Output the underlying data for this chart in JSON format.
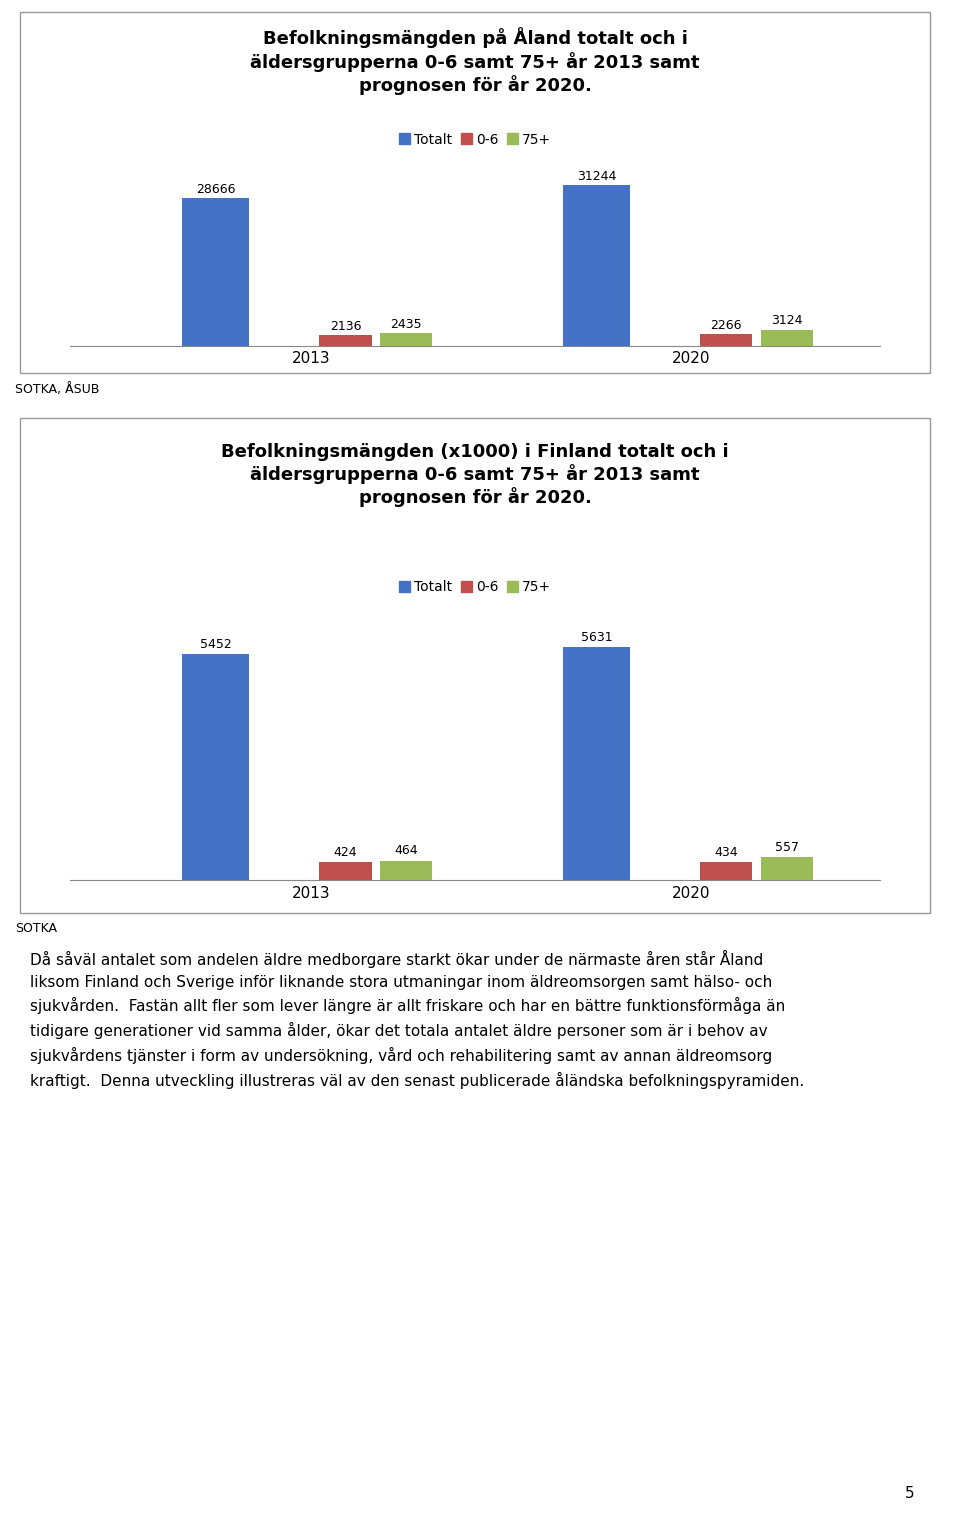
{
  "chart1": {
    "title": "Befolkningsmängden på Åland totalt och i\näldersgrupperna 0-6 samt 75+ år 2013 samt\nprognosen för år 2020.",
    "years": [
      "2013",
      "2020"
    ],
    "totalt": [
      28666,
      31244
    ],
    "age06": [
      2136,
      2266
    ],
    "age75": [
      2435,
      3124
    ],
    "color_totalt": "#4472C4",
    "color_06": "#C0504D",
    "color_75": "#9BBB59",
    "legend_labels": [
      "Totalt",
      "0-6",
      "75+"
    ]
  },
  "chart2": {
    "title": "Befolkningsmängden (x1000) i Finland totalt och i\näldersgrupperna 0-6 samt 75+ år 2013 samt\nprognosen för år 2020.",
    "years": [
      "2013",
      "2020"
    ],
    "totalt": [
      5452,
      5631
    ],
    "age06": [
      424,
      434
    ],
    "age75": [
      464,
      557
    ],
    "color_totalt": "#4472C4",
    "color_06": "#C0504D",
    "color_75": "#9BBB59",
    "legend_labels": [
      "Totalt",
      "0-6",
      "75+"
    ]
  },
  "source1": "SOTKA, ÅSUB",
  "source2": "SOTKA",
  "body_text_lines": [
    "Då såväl antalet som andelen äldre medborgare starkt ökar under de närmaste åren står Åland",
    "liksom Finland och Sverige inför liknande stora utmaningar inom äldreomsorgen samt hälso- och",
    "sjukvården.  Fastän allt fler som lever längre är allt friskare och har en bättre funktionsförmåga än",
    "tidigare generationer vid samma ålder, ökar det totala antalet äldre personer som är i behov av",
    "sjukvårdens tjänster i form av undersökning, vård och rehabilitering samt av annan äldreomsorg",
    "kraftigt.  Denna utveckling illustreras väl av den senast publicerade åländska befolkningspyramiden."
  ],
  "page_number": "5",
  "background_color": "#FFFFFF",
  "box_edge": "#AAAAAA"
}
